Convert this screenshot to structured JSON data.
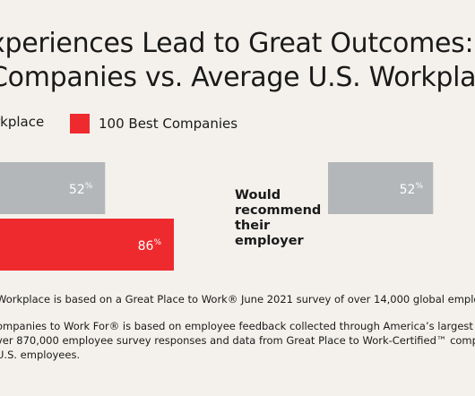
{
  "title": {
    "line1": "xperiences Lead to Great Outcomes:",
    "line2": "Companies vs. Average U.S. Workplac"
  },
  "legend": [
    {
      "name": "rkplace",
      "color": "#b3b7ba"
    },
    {
      "name": "100 Best Companies",
      "color": "#ef2a2e"
    }
  ],
  "chart_data": {
    "type": "bar",
    "orientation": "horizontal",
    "categories": [
      "",
      "Would recommend their employer"
    ],
    "category_label_lines": [
      "Would",
      "recommend",
      "their",
      "employer"
    ],
    "series": [
      {
        "name": "rkplace",
        "color": "#b3b7ba",
        "values": [
          52,
          52
        ],
        "labels": [
          "52%",
          "52%"
        ]
      },
      {
        "name": "100 Best Companies",
        "color": "#ef2a2e",
        "values": [
          86,
          null
        ],
        "labels": [
          "86%",
          ""
        ]
      }
    ],
    "value_unit": "%",
    "grid": false,
    "legend_position": "top"
  },
  "notes": {
    "line1": "Workplace is based on a Great Place to Work® June 2021 survey of over 14,000 global emplo",
    "line2": "ompanies to Work For® is based on employee feedback collected through America’s largest c",
    "line3": "ver 870,000 employee survey responses and data from Great Place to Work-Certified™ comp",
    "line4": "U.S. employees."
  }
}
